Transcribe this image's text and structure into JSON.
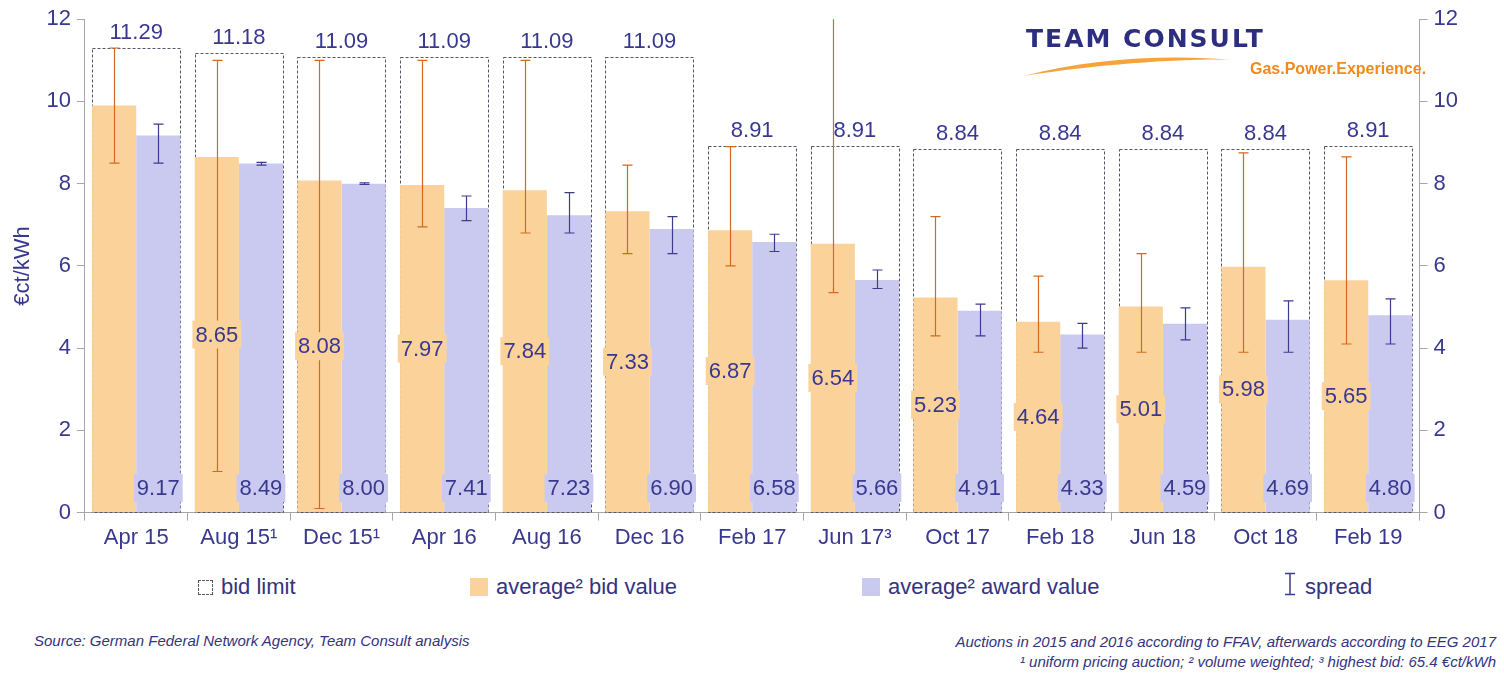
{
  "chart_data": {
    "type": "bar",
    "y_label": "€ct/kWh",
    "categories": [
      "Apr 15",
      "Aug 15¹",
      "Dec 15¹",
      "Apr 16",
      "Aug 16",
      "Dec 16",
      "Feb 17",
      "Jun 17³",
      "Oct 17",
      "Feb 18",
      "Jun 18",
      "Oct 18",
      "Feb 19"
    ],
    "series": [
      {
        "name": "bid limit",
        "type": "bar",
        "line_style": "dashed",
        "color": "#555566",
        "values": [
          11.29,
          11.18,
          11.09,
          11.09,
          11.09,
          11.09,
          8.91,
          8.91,
          8.84,
          8.84,
          8.84,
          8.84,
          8.91
        ]
      },
      {
        "name": "average² bid value",
        "type": "bar",
        "color": "#fcd29b",
        "values": [
          9.9,
          8.65,
          8.08,
          7.97,
          7.84,
          7.33,
          6.87,
          6.54,
          5.23,
          4.64,
          5.01,
          5.98,
          5.65
        ],
        "value_labels": [
          null,
          "8.65",
          "8.08",
          "7.97",
          "7.84",
          "7.33",
          "6.87",
          "6.54",
          "5.23",
          "4.64",
          "5.01",
          "5.98",
          "5.65"
        ],
        "spread_low": [
          8.5,
          1.0,
          0.1,
          6.95,
          6.8,
          6.3,
          6.0,
          5.35,
          4.3,
          3.9,
          3.9,
          3.9,
          4.1
        ],
        "spread_high": [
          11.3,
          11.0,
          11.0,
          11.0,
          11.0,
          8.45,
          8.9,
          65.4,
          7.2,
          5.75,
          6.3,
          8.75,
          8.65
        ]
      },
      {
        "name": "average² award value",
        "type": "bar",
        "color": "#cacaf0",
        "values": [
          9.17,
          8.49,
          8.0,
          7.41,
          7.23,
          6.9,
          6.58,
          5.66,
          4.91,
          4.33,
          4.59,
          4.69,
          4.8
        ],
        "value_labels": [
          "9.17",
          "8.49",
          "8.00",
          "7.41",
          "7.23",
          "6.90",
          "6.58",
          "5.66",
          "4.91",
          "4.33",
          "4.59",
          "4.69",
          "4.80"
        ],
        "spread_low": [
          8.5,
          8.45,
          7.98,
          7.1,
          6.8,
          6.3,
          6.35,
          5.45,
          4.3,
          4.0,
          4.2,
          3.9,
          4.1
        ],
        "spread_high": [
          9.45,
          8.52,
          8.02,
          7.7,
          7.78,
          7.2,
          6.77,
          5.9,
          5.07,
          4.6,
          4.98,
          5.15,
          5.2
        ]
      }
    ],
    "spread_label": "spread",
    "ylim": [
      0,
      12
    ],
    "yticks": [
      0,
      2,
      4,
      6,
      8,
      10,
      12
    ],
    "y2lim": [
      0,
      12
    ],
    "y2ticks": [
      0,
      2,
      4,
      6,
      8,
      10,
      12
    ],
    "grid": false,
    "legend": "bottom",
    "data_labels": true,
    "logo": {
      "name": "TEAM CONSULT",
      "slogan": "Gas.Power.Experience."
    },
    "source": "Source: German Federal Network Agency, Team Consult analysis",
    "footnotes": [
      "Auctions in 2015 and 2016 according to FFAV, afterwards according to EEG 2017",
      "¹ uniform pricing auction; ² volume weighted; ³ highest bid: 65.4 €ct/kWh"
    ]
  }
}
